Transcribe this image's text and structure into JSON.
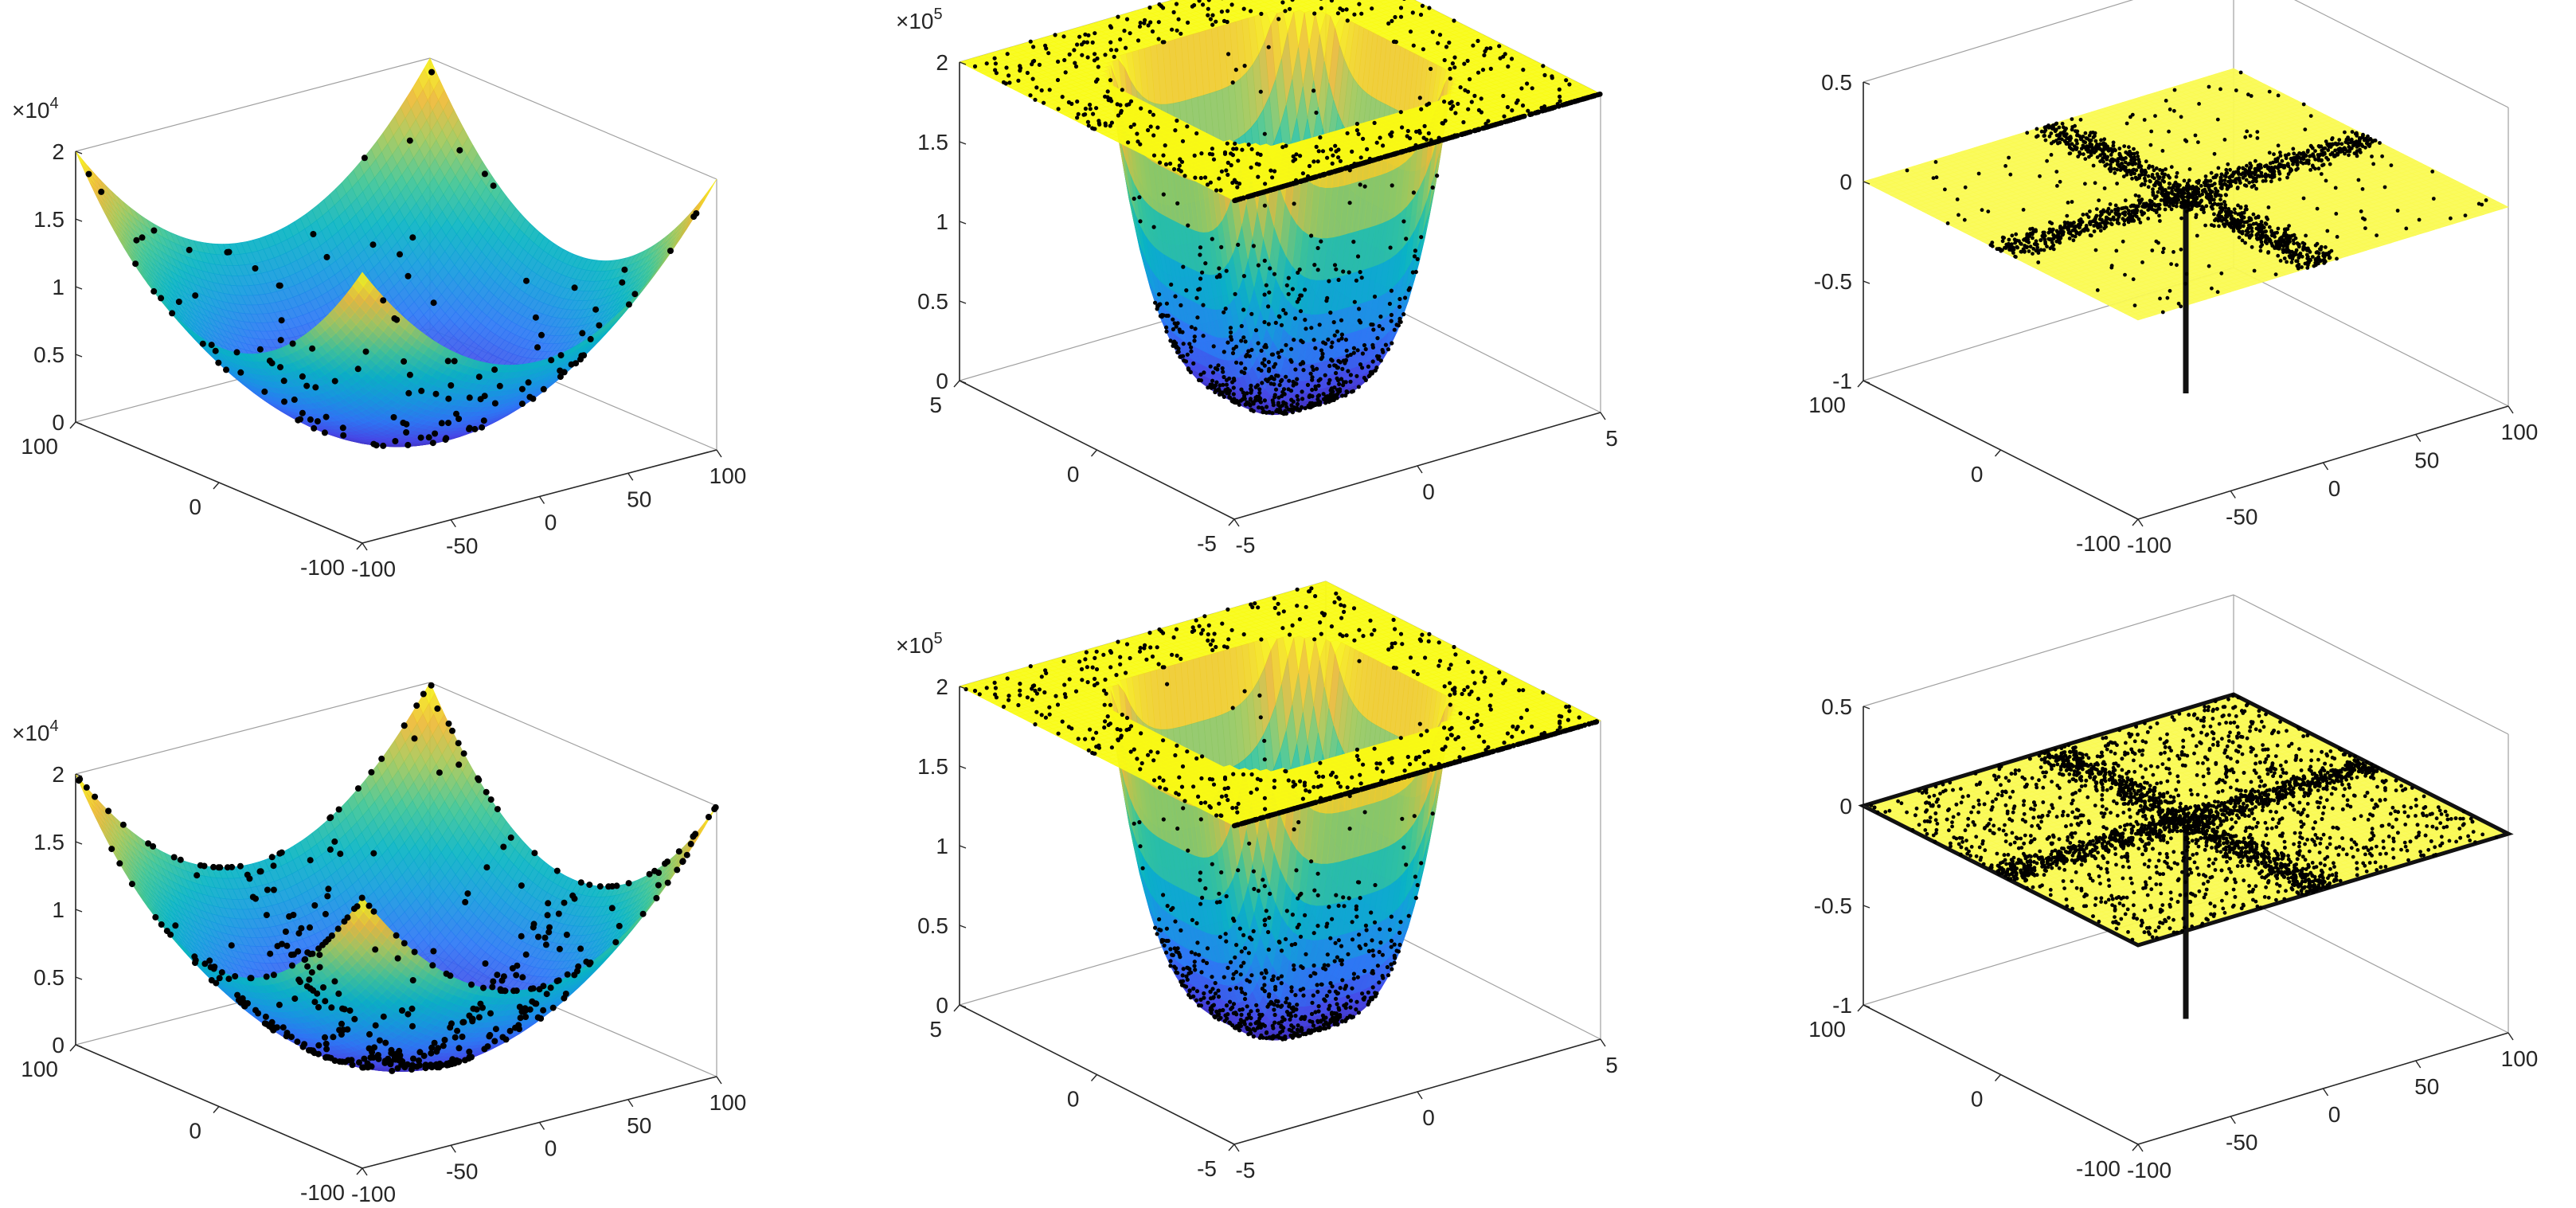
{
  "chart_data": [
    {
      "type": "surface3d",
      "function": "sphere",
      "title": "",
      "xlim": [
        -100,
        100
      ],
      "ylim": [
        -100,
        100
      ],
      "zlim": [
        0,
        20000
      ],
      "xticks": [
        -100,
        -50,
        0,
        50,
        100
      ],
      "xtick_labels": [
        "-100",
        "-50",
        "0",
        "50",
        "100"
      ],
      "yticks": [
        -100,
        0,
        100
      ],
      "ytick_labels": [
        "-100",
        "0",
        "100"
      ],
      "zticks": [
        0,
        5000,
        10000,
        15000,
        20000
      ],
      "ztick_labels": [
        "0",
        "0.5",
        "1",
        "1.5",
        "2"
      ],
      "z_exponent_base": "×10",
      "z_exponent_power": "4",
      "colormap": "parula",
      "point_color": "#000000",
      "points": "sparse"
    },
    {
      "type": "surface3d",
      "function": "wshape",
      "title": "",
      "xlim": [
        -5,
        5
      ],
      "ylim": [
        -5,
        5
      ],
      "zlim": [
        0,
        200000
      ],
      "xticks": [
        -5,
        0,
        5
      ],
      "xtick_labels": [
        "-5",
        "0",
        "5"
      ],
      "yticks": [
        -5,
        0,
        5
      ],
      "ytick_labels": [
        "-5",
        "0",
        "5"
      ],
      "zticks": [
        0,
        50000,
        100000,
        150000,
        200000
      ],
      "ztick_labels": [
        "0",
        "0.5",
        "1",
        "1.5",
        "2"
      ],
      "z_exponent_base": "×10",
      "z_exponent_power": "5",
      "colormap": "parula",
      "point_color": "#000000",
      "points": "dense"
    },
    {
      "type": "surface3d",
      "function": "needle",
      "title": "",
      "xlim": [
        -100,
        100
      ],
      "ylim": [
        -100,
        100
      ],
      "zlim": [
        -1,
        0.5
      ],
      "xticks": [
        -100,
        -50,
        0,
        50,
        100
      ],
      "xtick_labels": [
        "-100",
        "-50",
        "0",
        "50",
        "100"
      ],
      "yticks": [
        -100,
        0,
        100
      ],
      "ytick_labels": [
        "-100",
        "0",
        "100"
      ],
      "zticks": [
        -1,
        -0.5,
        0,
        0.5
      ],
      "ztick_labels": [
        "-1",
        "-0.5",
        "0",
        "0.5"
      ],
      "z_exponent_base": "",
      "z_exponent_power": "",
      "colormap": "yellow",
      "point_color": "#000000",
      "points": "cross"
    },
    {
      "type": "surface3d",
      "function": "sphere",
      "title": "",
      "xlim": [
        -100,
        100
      ],
      "ylim": [
        -100,
        100
      ],
      "zlim": [
        0,
        20000
      ],
      "xticks": [
        -100,
        -50,
        0,
        50,
        100
      ],
      "xtick_labels": [
        "-100",
        "-50",
        "0",
        "50",
        "100"
      ],
      "yticks": [
        -100,
        0,
        100
      ],
      "ytick_labels": [
        "-100",
        "0",
        "100"
      ],
      "zticks": [
        0,
        5000,
        10000,
        15000,
        20000
      ],
      "ztick_labels": [
        "0",
        "0.5",
        "1",
        "1.5",
        "2"
      ],
      "z_exponent_base": "×10",
      "z_exponent_power": "4",
      "colormap": "parula",
      "point_color": "#000000",
      "points": "medium"
    },
    {
      "type": "surface3d",
      "function": "wshape",
      "title": "",
      "xlim": [
        -5,
        5
      ],
      "ylim": [
        -5,
        5
      ],
      "zlim": [
        0,
        200000
      ],
      "xticks": [
        -5,
        0,
        5
      ],
      "xtick_labels": [
        "-5",
        "0",
        "5"
      ],
      "yticks": [
        -5,
        0,
        5
      ],
      "ytick_labels": [
        "-5",
        "0",
        "5"
      ],
      "zticks": [
        0,
        50000,
        100000,
        150000,
        200000
      ],
      "ztick_labels": [
        "0",
        "0.5",
        "1",
        "1.5",
        "2"
      ],
      "z_exponent_base": "×10",
      "z_exponent_power": "5",
      "colormap": "parula",
      "point_color": "#000000",
      "points": "dense"
    },
    {
      "type": "surface3d",
      "function": "needle",
      "title": "",
      "xlim": [
        -100,
        100
      ],
      "ylim": [
        -100,
        100
      ],
      "zlim": [
        -1,
        0.5
      ],
      "xticks": [
        -100,
        -50,
        0,
        50,
        100
      ],
      "xtick_labels": [
        "-100",
        "-50",
        "0",
        "50",
        "100"
      ],
      "yticks": [
        -100,
        0,
        100
      ],
      "ytick_labels": [
        "-100",
        "0",
        "100"
      ],
      "zticks": [
        -1,
        -0.5,
        0,
        0.5
      ],
      "ztick_labels": [
        "-1",
        "-0.5",
        "0",
        "0.5"
      ],
      "z_exponent_base": "",
      "z_exponent_power": "",
      "colormap": "yellow",
      "point_color": "#000000",
      "points": "cross_dense"
    }
  ]
}
